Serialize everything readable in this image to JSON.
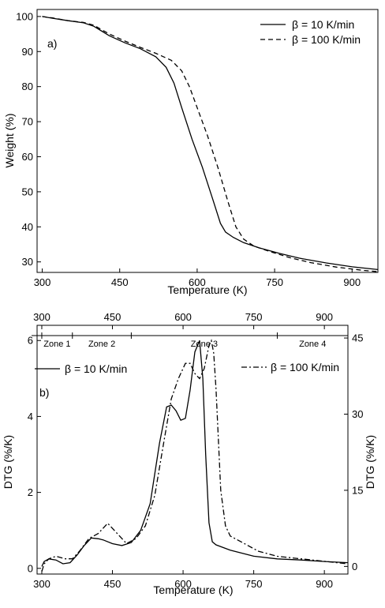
{
  "chart_data": [
    {
      "type": "line",
      "panel_label": "a)",
      "xlabel": "Temperature (K)",
      "ylabel": "Weight (%)",
      "xlim": [
        290,
        950
      ],
      "ylim": [
        27,
        102
      ],
      "xticks": [
        300,
        450,
        600,
        750,
        900
      ],
      "yticks": [
        30,
        40,
        50,
        60,
        70,
        80,
        90,
        100
      ],
      "legend_position": "top-right",
      "grid": false,
      "series": [
        {
          "name": "β = 10 K/min",
          "style": "solid",
          "x": [
            300,
            320,
            350,
            380,
            400,
            430,
            460,
            490,
            520,
            540,
            555,
            570,
            590,
            610,
            630,
            645,
            655,
            670,
            690,
            720,
            760,
            800,
            850,
            900,
            950
          ],
          "y": [
            100,
            99.5,
            98.8,
            98.2,
            97.2,
            94.5,
            92.5,
            90.8,
            88.5,
            85.5,
            81.0,
            74.0,
            65.0,
            57.0,
            48.0,
            41.0,
            38.5,
            37.0,
            35.5,
            34.0,
            32.4,
            31.0,
            29.7,
            28.6,
            27.8
          ]
        },
        {
          "name": "β = 100 K/min",
          "style": "dashed",
          "x": [
            300,
            320,
            350,
            380,
            400,
            430,
            460,
            490,
            520,
            550,
            570,
            585,
            600,
            620,
            640,
            660,
            675,
            690,
            710,
            740,
            780,
            820,
            870,
            920,
            950
          ],
          "y": [
            100,
            99.6,
            98.8,
            98.3,
            97.5,
            95.0,
            93.0,
            91.2,
            89.5,
            87.5,
            84.5,
            80.0,
            74.0,
            66.0,
            57.0,
            47.0,
            40.0,
            36.5,
            34.5,
            33.0,
            31.2,
            29.8,
            28.5,
            27.6,
            27.2
          ]
        }
      ]
    },
    {
      "type": "line",
      "panel_label": "b)",
      "xlabel": "Temperature (K)",
      "ylabel": "DTG (%/K)",
      "ylabel_right": "DTG (%/K)",
      "xlim": [
        290,
        950
      ],
      "ylim": [
        -0.15,
        6.4
      ],
      "ylim_right": [
        -1.5,
        47.5
      ],
      "xticks": [
        300,
        450,
        600,
        750,
        900
      ],
      "xticks_top": [
        300,
        450,
        600,
        750,
        900
      ],
      "yticks": [
        0,
        2,
        4,
        6
      ],
      "yticks_right": [
        0,
        15,
        30,
        45
      ],
      "zones": [
        {
          "label": "Zone 1",
          "from": 300,
          "to": 365
        },
        {
          "label": "Zone 2",
          "from": 365,
          "to": 490
        },
        {
          "label": "Zone 3",
          "from": 490,
          "to": 800
        },
        {
          "label": "Zone 4",
          "from": 800,
          "to": 950
        }
      ],
      "grid": false,
      "series": [
        {
          "name": "β = 10 K/min",
          "style": "solid",
          "axis": "left",
          "x": [
            300,
            305,
            315,
            330,
            345,
            360,
            375,
            390,
            405,
            420,
            430,
            450,
            470,
            490,
            510,
            530,
            550,
            565,
            575,
            585,
            595,
            605,
            615,
            625,
            635,
            642,
            648,
            655,
            662,
            670,
            700,
            750,
            800,
            850,
            900,
            950
          ],
          "y": [
            0.05,
            0.18,
            0.25,
            0.22,
            0.12,
            0.15,
            0.35,
            0.6,
            0.8,
            0.78,
            0.75,
            0.65,
            0.6,
            0.68,
            1.0,
            1.7,
            3.3,
            4.25,
            4.3,
            4.15,
            3.9,
            3.95,
            4.7,
            5.7,
            6.0,
            5.0,
            3.0,
            1.2,
            0.7,
            0.62,
            0.48,
            0.32,
            0.25,
            0.22,
            0.18,
            0.15
          ]
        },
        {
          "name": "β = 100 K/min",
          "style": "dashdot",
          "axis": "right",
          "x": [
            300,
            305,
            315,
            330,
            350,
            365,
            380,
            400,
            420,
            440,
            460,
            480,
            500,
            520,
            540,
            560,
            575,
            590,
            605,
            615,
            625,
            635,
            645,
            655,
            660,
            665,
            670,
            675,
            680,
            690,
            700,
            730,
            760,
            800,
            850,
            900,
            950
          ],
          "y": [
            -1.0,
            0.5,
            1.5,
            2.0,
            1.5,
            1.5,
            3.0,
            5.5,
            6.5,
            8.5,
            6.5,
            4.5,
            5.5,
            8.0,
            14.0,
            25.0,
            33.0,
            37.0,
            40.0,
            40.0,
            38.0,
            37.0,
            39.0,
            43.5,
            44.5,
            42.0,
            35.0,
            25.0,
            15.0,
            8.0,
            6.0,
            4.5,
            3.0,
            2.0,
            1.5,
            1.0,
            0.5
          ]
        }
      ]
    }
  ]
}
